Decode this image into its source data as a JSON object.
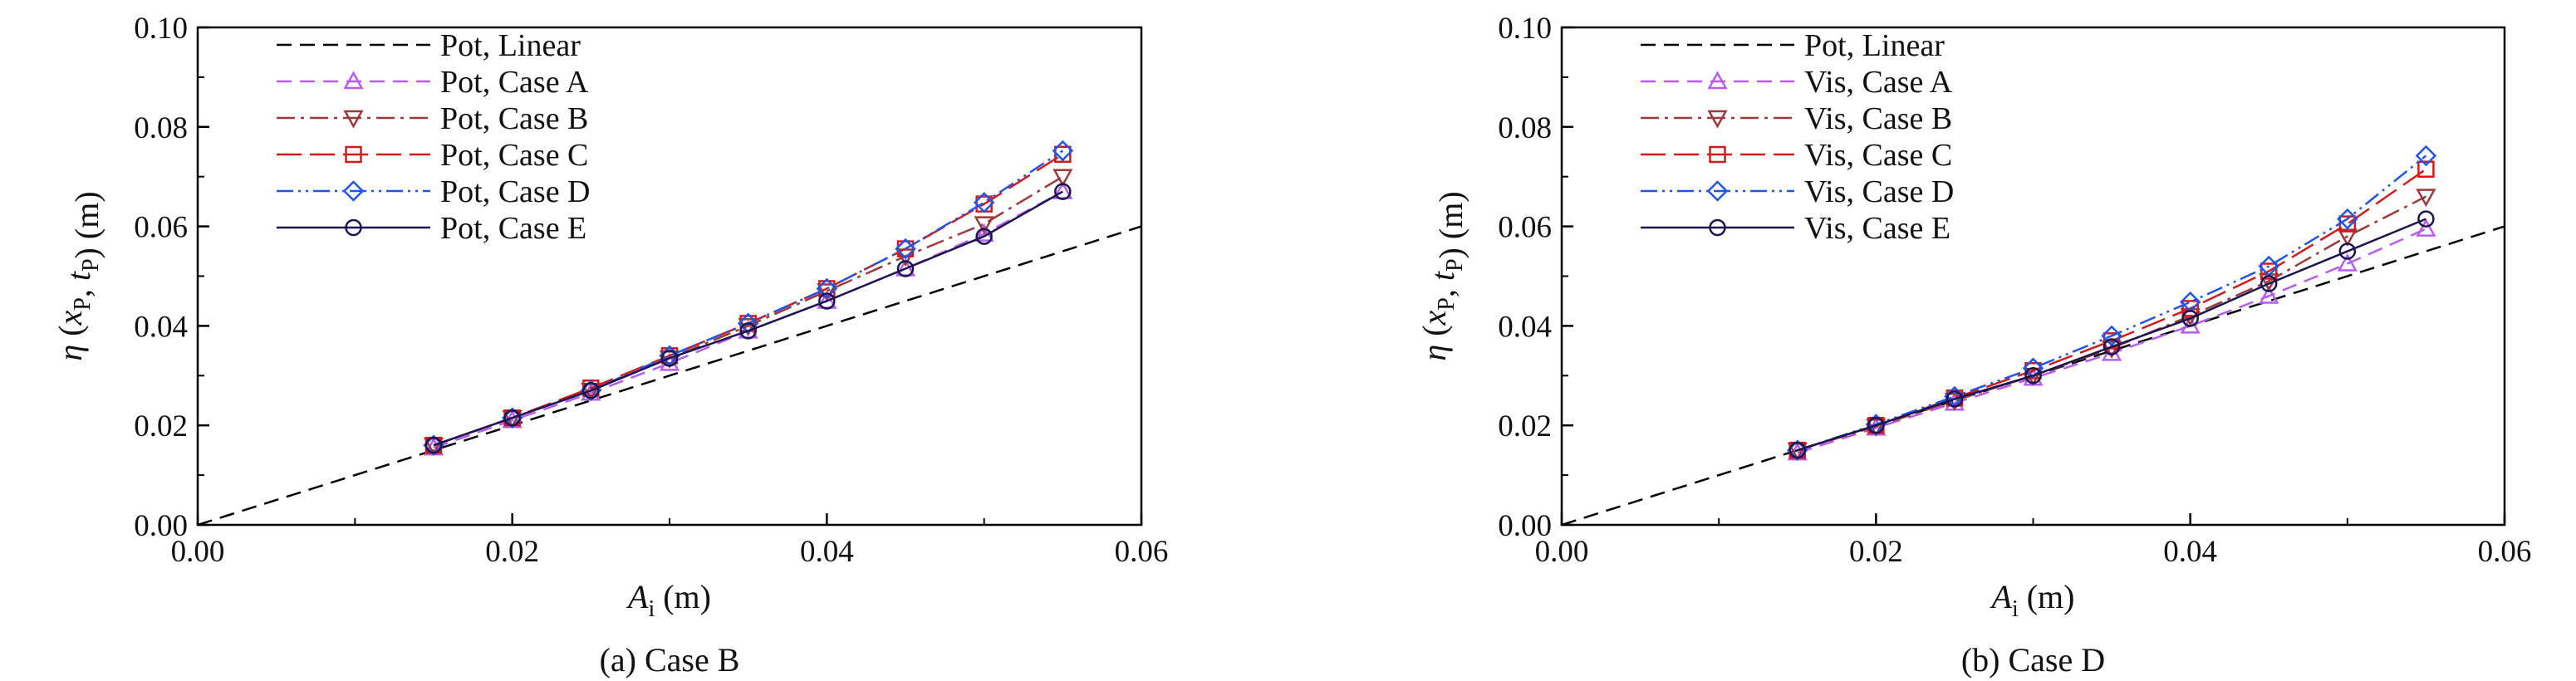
{
  "chart_data": [
    {
      "type": "line",
      "caption": "(a) Case B",
      "xlabel": "A_i (m)",
      "ylabel": "η (x_P, t_P) (m)",
      "xlim": [
        0,
        0.06
      ],
      "ylim": [
        0,
        0.1
      ],
      "xticks": [
        "0.00",
        "0.02",
        "0.04",
        "0.06"
      ],
      "yticks": [
        "0.00",
        "0.02",
        "0.04",
        "0.06",
        "0.08",
        "0.10"
      ],
      "grid": false,
      "legend_position": "top-left",
      "series": [
        {
          "name": "Pot, Linear",
          "color": "#000000",
          "dash": "dashed",
          "marker": "none",
          "x": [
            0.0,
            0.06
          ],
          "y": [
            0.0,
            0.06
          ]
        },
        {
          "name": "Pot, Case A",
          "color": "#b85cf0",
          "dash": "dashed",
          "marker": "triangle-up",
          "x": [
            0.015,
            0.02,
            0.025,
            0.03,
            0.035,
            0.04,
            0.045,
            0.05,
            0.055
          ],
          "y": [
            0.0155,
            0.021,
            0.0265,
            0.0325,
            0.039,
            0.045,
            0.0515,
            0.0585,
            0.067
          ]
        },
        {
          "name": "Pot, Case B",
          "color": "#9b3a3a",
          "dash": "dashdot",
          "marker": "triangle-down",
          "x": [
            0.015,
            0.02,
            0.025,
            0.03,
            0.035,
            0.04,
            0.045,
            0.05,
            0.055
          ],
          "y": [
            0.016,
            0.0215,
            0.027,
            0.0335,
            0.04,
            0.047,
            0.054,
            0.0605,
            0.07
          ]
        },
        {
          "name": "Pot, Case C",
          "color": "#d21a1a",
          "dash": "longdash",
          "marker": "square",
          "x": [
            0.015,
            0.02,
            0.025,
            0.03,
            0.035,
            0.04,
            0.045,
            0.05,
            0.055
          ],
          "y": [
            0.016,
            0.0215,
            0.0275,
            0.034,
            0.0405,
            0.0475,
            0.0555,
            0.0645,
            0.0745
          ]
        },
        {
          "name": "Pot, Case D",
          "color": "#1f55e8",
          "dash": "dashdotdot",
          "marker": "diamond",
          "x": [
            0.015,
            0.02,
            0.025,
            0.03,
            0.035,
            0.04,
            0.045,
            0.05,
            0.055
          ],
          "y": [
            0.016,
            0.0215,
            0.027,
            0.034,
            0.0405,
            0.0475,
            0.0555,
            0.0648,
            0.0752
          ]
        },
        {
          "name": "Pot, Case E",
          "color": "#1c1650",
          "dash": "solid",
          "marker": "circle",
          "x": [
            0.015,
            0.02,
            0.025,
            0.03,
            0.035,
            0.04,
            0.045,
            0.05,
            0.055
          ],
          "y": [
            0.016,
            0.0215,
            0.027,
            0.0335,
            0.039,
            0.045,
            0.0515,
            0.058,
            0.067
          ]
        }
      ]
    },
    {
      "type": "line",
      "caption": "(b) Case D",
      "xlabel": "A_i (m)",
      "ylabel": "η (x_P, t_P) (m)",
      "xlim": [
        0,
        0.06
      ],
      "ylim": [
        0,
        0.1
      ],
      "xticks": [
        "0.00",
        "0.02",
        "0.04",
        "0.06"
      ],
      "yticks": [
        "0.00",
        "0.02",
        "0.04",
        "0.06",
        "0.08",
        "0.10"
      ],
      "grid": false,
      "legend_position": "top-left",
      "series": [
        {
          "name": "Pot, Linear",
          "color": "#000000",
          "dash": "dashed",
          "marker": "none",
          "x": [
            0.0,
            0.06
          ],
          "y": [
            0.0,
            0.06
          ]
        },
        {
          "name": "Vis, Case A",
          "color": "#b85cf0",
          "dash": "dashed",
          "marker": "triangle-up",
          "x": [
            0.015,
            0.02,
            0.025,
            0.03,
            0.035,
            0.04,
            0.045,
            0.05,
            0.055
          ],
          "y": [
            0.0145,
            0.0195,
            0.0245,
            0.0295,
            0.0345,
            0.04,
            0.046,
            0.0525,
            0.0595
          ]
        },
        {
          "name": "Vis, Case B",
          "color": "#9b3a3a",
          "dash": "dashdot",
          "marker": "triangle-down",
          "x": [
            0.015,
            0.02,
            0.025,
            0.03,
            0.035,
            0.04,
            0.045,
            0.05,
            0.055
          ],
          "y": [
            0.015,
            0.0198,
            0.025,
            0.03,
            0.0355,
            0.042,
            0.049,
            0.058,
            0.066
          ]
        },
        {
          "name": "Vis, Case C",
          "color": "#d21a1a",
          "dash": "longdash",
          "marker": "square",
          "x": [
            0.015,
            0.02,
            0.025,
            0.03,
            0.035,
            0.04,
            0.045,
            0.05,
            0.055
          ],
          "y": [
            0.015,
            0.02,
            0.0255,
            0.031,
            0.037,
            0.0435,
            0.051,
            0.0605,
            0.0715
          ]
        },
        {
          "name": "Vis, Case D",
          "color": "#1f55e8",
          "dash": "dashdotdot",
          "marker": "diamond",
          "x": [
            0.015,
            0.02,
            0.025,
            0.03,
            0.035,
            0.04,
            0.045,
            0.05,
            0.055
          ],
          "y": [
            0.015,
            0.0202,
            0.0258,
            0.0315,
            0.038,
            0.0448,
            0.052,
            0.0615,
            0.0742
          ]
        },
        {
          "name": "Vis, Case E",
          "color": "#1c1650",
          "dash": "solid",
          "marker": "circle",
          "x": [
            0.015,
            0.02,
            0.025,
            0.03,
            0.035,
            0.04,
            0.045,
            0.05,
            0.055
          ],
          "y": [
            0.015,
            0.02,
            0.0253,
            0.03,
            0.0358,
            0.0415,
            0.0485,
            0.055,
            0.0615
          ]
        }
      ]
    }
  ]
}
